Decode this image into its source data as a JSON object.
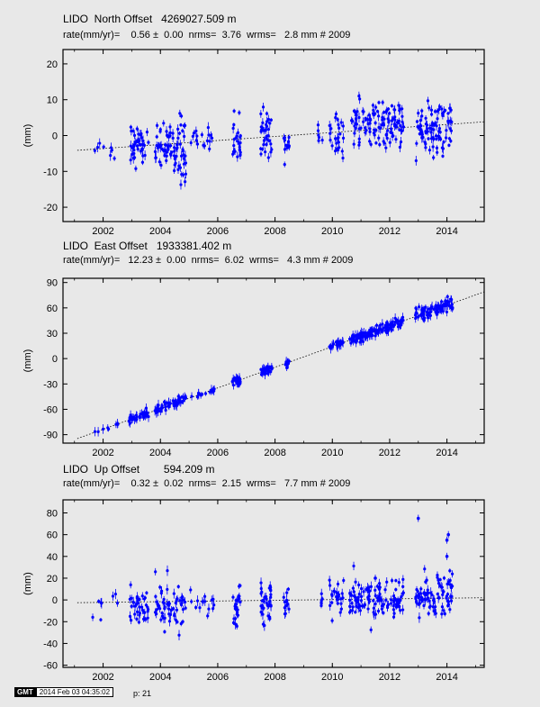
{
  "panels": [
    {
      "title": "LIDO  North Offset   4269027.509 m",
      "subtitle": "rate(mm/yr)=    0.56 ±  0.00  nrms=  3.76  wrms=   2.8 mm # 2009",
      "ylabel": "(mm)"
    },
    {
      "title": "LIDO  East Offset   1933381.402 m",
      "subtitle": "rate(mm/yr)=   12.23 ±  0.00  nrms=  6.02  wrms=   4.3 mm # 2009",
      "ylabel": "(mm)"
    },
    {
      "title": "LIDO  Up Offset        594.209 m",
      "subtitle": "rate(mm/yr)=    0.32 ±  0.02  nrms=  2.15  wrms=   7.7 mm # 2009",
      "ylabel": "(mm)"
    }
  ],
  "chart_data": [
    {
      "type": "scatter",
      "title": "LIDO  North Offset   4269027.509 m",
      "ylabel": "(mm)",
      "xlim": [
        2000.6,
        2015.3
      ],
      "ylim": [
        -24,
        24
      ],
      "xticks": [
        2002,
        2004,
        2006,
        2008,
        2010,
        2012,
        2014
      ],
      "yticks": [
        -20,
        -10,
        0,
        10,
        20
      ],
      "color": "#0000ff",
      "trend": {
        "rate": 0.56,
        "ref_year": 2009,
        "offset": 0.3
      },
      "clusters": [
        {
          "x0": 2001.6,
          "x1": 2002.6,
          "center": -4,
          "spread": 1.5,
          "n": 8
        },
        {
          "x0": 2002.9,
          "x1": 2003.6,
          "center": -2,
          "spread": 3,
          "n": 40
        },
        {
          "x0": 2003.8,
          "x1": 2004.5,
          "center": -3,
          "spread": 3,
          "n": 45
        },
        {
          "x0": 2004.5,
          "x1": 2004.9,
          "center": -4,
          "spread": 4,
          "n": 35
        },
        {
          "x0": 2005.0,
          "x1": 2005.9,
          "center": -1,
          "spread": 1.5,
          "n": 18
        },
        {
          "x0": 2006.5,
          "x1": 2006.8,
          "center": -1,
          "spread": 4,
          "n": 25
        },
        {
          "x0": 2007.5,
          "x1": 2007.9,
          "center": 0,
          "spread": 3,
          "n": 35
        },
        {
          "x0": 2008.3,
          "x1": 2008.5,
          "center": -2,
          "spread": 2.5,
          "n": 12
        },
        {
          "x0": 2009.5,
          "x1": 2009.7,
          "center": 0,
          "spread": 1.5,
          "n": 6
        },
        {
          "x0": 2009.9,
          "x1": 2010.4,
          "center": 0,
          "spread": 3,
          "n": 25
        },
        {
          "x0": 2010.6,
          "x1": 2012.5,
          "center": 3,
          "spread": 3,
          "n": 120
        },
        {
          "x0": 2012.9,
          "x1": 2014.2,
          "center": 1.5,
          "spread": 4,
          "n": 90
        }
      ]
    },
    {
      "type": "scatter",
      "title": "LIDO  East Offset   1933381.402 m",
      "ylabel": "(mm)",
      "xlim": [
        2000.6,
        2015.3
      ],
      "ylim": [
        -100,
        95
      ],
      "xticks": [
        2002,
        2004,
        2006,
        2008,
        2010,
        2012,
        2014
      ],
      "yticks": [
        -90,
        -60,
        -30,
        0,
        30,
        60,
        90
      ],
      "color": "#0000ff",
      "trend": {
        "rate": 12.23,
        "ref_year": 2009,
        "offset": 2
      },
      "clusters": [
        {
          "x0": 2001.7,
          "x1": 2002.6,
          "center": 0,
          "spread": 1.5,
          "n": 8
        },
        {
          "x0": 2002.9,
          "x1": 2003.6,
          "center": 0,
          "spread": 2.5,
          "n": 40
        },
        {
          "x0": 2003.8,
          "x1": 2004.9,
          "center": 0,
          "spread": 2.5,
          "n": 60
        },
        {
          "x0": 2005.0,
          "x1": 2005.9,
          "center": 0,
          "spread": 1.5,
          "n": 15
        },
        {
          "x0": 2006.5,
          "x1": 2006.8,
          "center": 0,
          "spread": 2.5,
          "n": 25
        },
        {
          "x0": 2007.5,
          "x1": 2007.9,
          "center": 0,
          "spread": 2.5,
          "n": 35
        },
        {
          "x0": 2008.3,
          "x1": 2008.5,
          "center": 0,
          "spread": 2,
          "n": 12
        },
        {
          "x0": 2009.9,
          "x1": 2010.4,
          "center": 0,
          "spread": 2,
          "n": 25
        },
        {
          "x0": 2010.6,
          "x1": 2012.5,
          "center": 3,
          "spread": 3,
          "n": 120
        },
        {
          "x0": 2012.9,
          "x1": 2014.2,
          "center": 3,
          "spread": 4,
          "n": 90
        }
      ]
    },
    {
      "type": "scatter",
      "title": "LIDO  Up Offset        594.209 m",
      "ylabel": "(mm)",
      "xlim": [
        2000.6,
        2015.3
      ],
      "ylim": [
        -62,
        92
      ],
      "xticks": [
        2002,
        2004,
        2006,
        2008,
        2010,
        2012,
        2014
      ],
      "yticks": [
        -60,
        -40,
        -20,
        0,
        20,
        40,
        60,
        80
      ],
      "color": "#0000ff",
      "trend": {
        "rate": 0.32,
        "ref_year": 2009,
        "offset": 0
      },
      "clusters": [
        {
          "x0": 2001.6,
          "x1": 2002.6,
          "center": 0,
          "spread": 8,
          "n": 8
        },
        {
          "x0": 2002.9,
          "x1": 2003.6,
          "center": -5,
          "spread": 9,
          "n": 40
        },
        {
          "x0": 2003.8,
          "x1": 2004.9,
          "center": -5,
          "spread": 10,
          "n": 60
        },
        {
          "x0": 2005.0,
          "x1": 2005.9,
          "center": -2,
          "spread": 5,
          "n": 15
        },
        {
          "x0": 2006.5,
          "x1": 2006.8,
          "center": -3,
          "spread": 10,
          "n": 25
        },
        {
          "x0": 2007.5,
          "x1": 2007.9,
          "center": 0,
          "spread": 9,
          "n": 35
        },
        {
          "x0": 2008.3,
          "x1": 2008.5,
          "center": -3,
          "spread": 6,
          "n": 12
        },
        {
          "x0": 2009.5,
          "x1": 2009.7,
          "center": 0,
          "spread": 4,
          "n": 6
        },
        {
          "x0": 2009.9,
          "x1": 2010.4,
          "center": 0,
          "spread": 9,
          "n": 25
        },
        {
          "x0": 2010.6,
          "x1": 2012.5,
          "center": 0,
          "spread": 9,
          "n": 120
        },
        {
          "x0": 2012.9,
          "x1": 2014.2,
          "center": 0,
          "spread": 10,
          "n": 90
        }
      ],
      "outliers": [
        [
          2013.0,
          75
        ],
        [
          2014.05,
          60
        ],
        [
          2014.0,
          55
        ],
        [
          2014.0,
          40
        ],
        [
          2011.5,
          20
        ]
      ]
    }
  ],
  "footer": {
    "badge": "GMT",
    "timestamp": "2014 Feb 03 04:35:02",
    "page": "p: 21"
  }
}
